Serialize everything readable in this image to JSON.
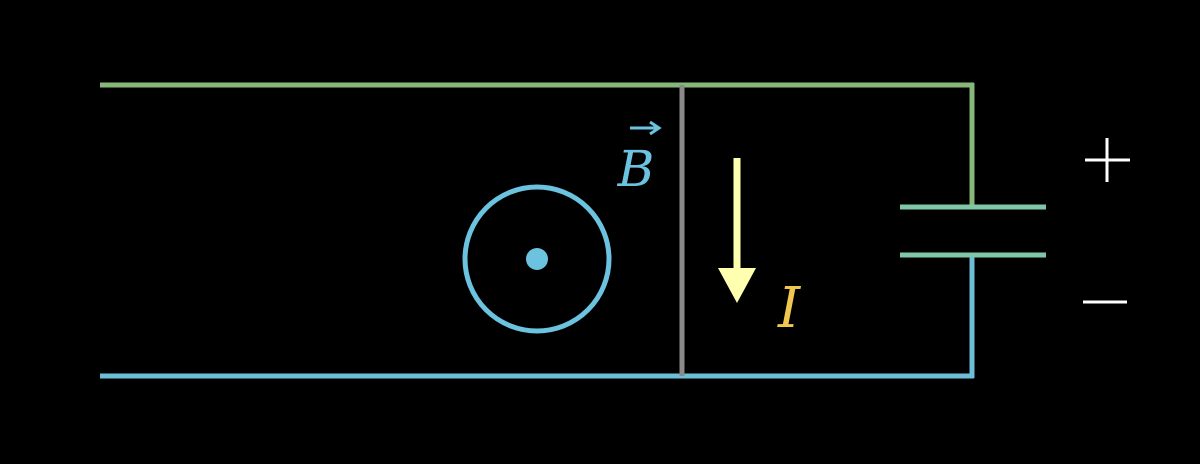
{
  "colors": {
    "background": "#000000",
    "rail_top": "#86b87a",
    "rail_bottom": "#6cbfd6",
    "slider_rod": "#8a8a8a",
    "capacitor_plates": "#7fc7a6",
    "field_symbol": "#6cc3e0",
    "current_arrow": "#ffffb0",
    "current_label": "#f0c850",
    "terminal_signs": "#ffffff"
  },
  "labels": {
    "field": "B",
    "current": "I",
    "plus": "+",
    "minus": "−"
  },
  "field_direction": "out-of-page",
  "icons": {
    "field_symbol": "dot-in-circle-icon",
    "vector_arrow": "vector-arrow-icon",
    "current_arrow": "down-arrow-icon"
  }
}
